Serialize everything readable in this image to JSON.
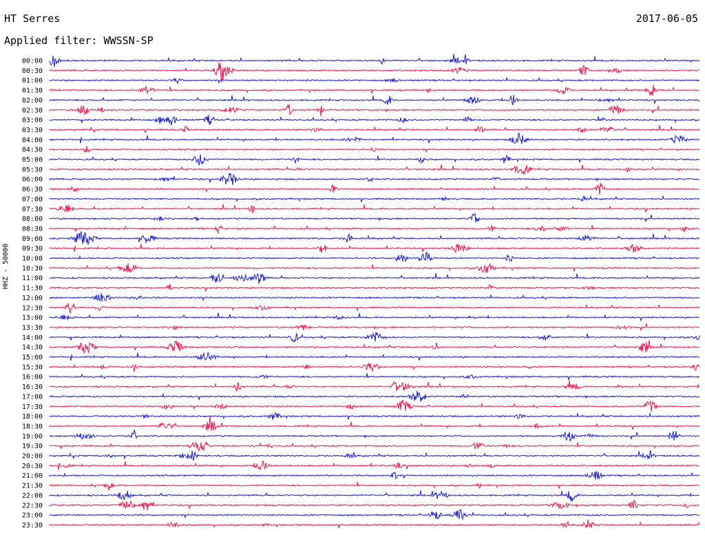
{
  "header": {
    "station": "HT Serres",
    "date": "2017-06-05",
    "filter": "Applied filter: WWSSN-SP"
  },
  "axis": {
    "ylabel": "HHZ - 50000"
  },
  "colors": {
    "trace_a": "#1a1ad6",
    "trace_b": "#f0144c",
    "text": "#000000"
  },
  "chart_data": {
    "type": "line",
    "title": "",
    "xlabel": "",
    "ylabel": "HHZ - 50000",
    "grid": false,
    "legend": "none",
    "categories": [
      "00:00",
      "00:30",
      "01:00",
      "01:30",
      "02:00",
      "02:30",
      "03:00",
      "03:30",
      "04:00",
      "04:30",
      "05:00",
      "05:30",
      "06:00",
      "06:30",
      "07:00",
      "07:30",
      "08:00",
      "08:30",
      "09:00",
      "09:30",
      "10:00",
      "10:30",
      "11:00",
      "11:30",
      "12:00",
      "12:30",
      "13:00",
      "13:30",
      "14:00",
      "14:30",
      "15:00",
      "15:30",
      "16:00",
      "16:30",
      "17:00",
      "17:30",
      "18:00",
      "18:30",
      "19:00",
      "19:30",
      "20:00",
      "20:30",
      "21:00",
      "21:30",
      "22:00",
      "22:30",
      "23:00",
      "23:30"
    ],
    "series_colors": [
      "#1a1ad6",
      "#f0144c"
    ]
  }
}
